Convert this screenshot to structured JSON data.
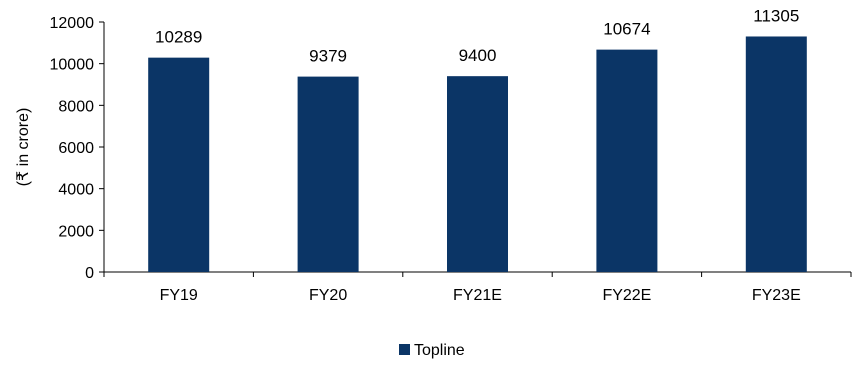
{
  "chart_data": {
    "type": "bar",
    "title": "",
    "xlabel": "",
    "ylabel": "(₹ in crore)",
    "categories": [
      "FY19",
      "FY20",
      "FY21E",
      "FY22E",
      "FY23E"
    ],
    "series": [
      {
        "name": "Topline",
        "values": [
          10289,
          9379,
          9400,
          10674,
          11305
        ],
        "color": "#0b3566"
      }
    ],
    "ylim": [
      0,
      12000
    ],
    "yticks": [
      0,
      2000,
      4000,
      6000,
      8000,
      10000,
      12000
    ],
    "grid": false,
    "legend": "bottom-center",
    "data_labels": true
  }
}
